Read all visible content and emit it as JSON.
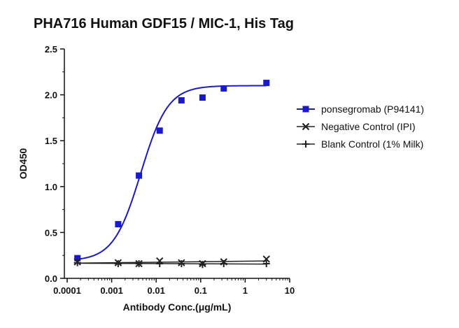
{
  "chart_data": {
    "type": "scatter",
    "title": "PHA716 Human GDF15 / MIC-1, His Tag",
    "xlabel": "Antibody Conc.(μg/mL)",
    "ylabel": "OD450",
    "x_scale": "log",
    "xlim": [
      0.0001,
      10
    ],
    "ylim": [
      0,
      2.5
    ],
    "x_ticks": [
      {
        "value": 0.0001,
        "label": "0.0001"
      },
      {
        "value": 0.001,
        "label": "0.001"
      },
      {
        "value": 0.01,
        "label": "0.01"
      },
      {
        "value": 0.1,
        "label": "0.1"
      },
      {
        "value": 1,
        "label": "1"
      },
      {
        "value": 10,
        "label": "10"
      }
    ],
    "y_ticks": [
      {
        "value": 0,
        "label": "0.0"
      },
      {
        "value": 0.5,
        "label": "0.5"
      },
      {
        "value": 1.0,
        "label": "1.0"
      },
      {
        "value": 1.5,
        "label": "1.5"
      },
      {
        "value": 2.0,
        "label": "2.0"
      },
      {
        "value": 2.5,
        "label": "2.5"
      }
    ],
    "grid": false,
    "legend_position": "right",
    "series": [
      {
        "name": "ponsegromab (P94141)",
        "marker": "square",
        "color": "#1a1acc",
        "fit": "sigmoid",
        "fit_params": {
          "bottom": 0.19,
          "top": 2.1,
          "ec50": 0.0045,
          "hill": 1.42
        },
        "points": [
          {
            "x": 0.00017,
            "y": 0.22
          },
          {
            "x": 0.0014,
            "y": 0.59
          },
          {
            "x": 0.0041,
            "y": 1.12
          },
          {
            "x": 0.012,
            "y": 1.61
          },
          {
            "x": 0.037,
            "y": 1.94
          },
          {
            "x": 0.11,
            "y": 1.97
          },
          {
            "x": 0.33,
            "y": 2.07
          },
          {
            "x": 3.0,
            "y": 2.13
          }
        ]
      },
      {
        "name": "Negative Control (IPI)",
        "marker": "x",
        "color": "#222222",
        "fit": "line",
        "points": [
          {
            "x": 0.00017,
            "y": 0.18
          },
          {
            "x": 0.0014,
            "y": 0.17
          },
          {
            "x": 0.0041,
            "y": 0.16
          },
          {
            "x": 0.012,
            "y": 0.19
          },
          {
            "x": 0.037,
            "y": 0.17
          },
          {
            "x": 0.11,
            "y": 0.16
          },
          {
            "x": 0.33,
            "y": 0.18
          },
          {
            "x": 3.0,
            "y": 0.21
          }
        ]
      },
      {
        "name": "Blank Control (1% Milk)",
        "marker": "plus",
        "color": "#222222",
        "fit": "line",
        "points": [
          {
            "x": 0.00017,
            "y": 0.17
          },
          {
            "x": 0.0014,
            "y": 0.16
          },
          {
            "x": 0.0041,
            "y": 0.16
          },
          {
            "x": 0.012,
            "y": 0.16
          },
          {
            "x": 0.037,
            "y": 0.16
          },
          {
            "x": 0.11,
            "y": 0.15
          },
          {
            "x": 0.33,
            "y": 0.16
          },
          {
            "x": 3.0,
            "y": 0.16
          }
        ]
      }
    ]
  }
}
